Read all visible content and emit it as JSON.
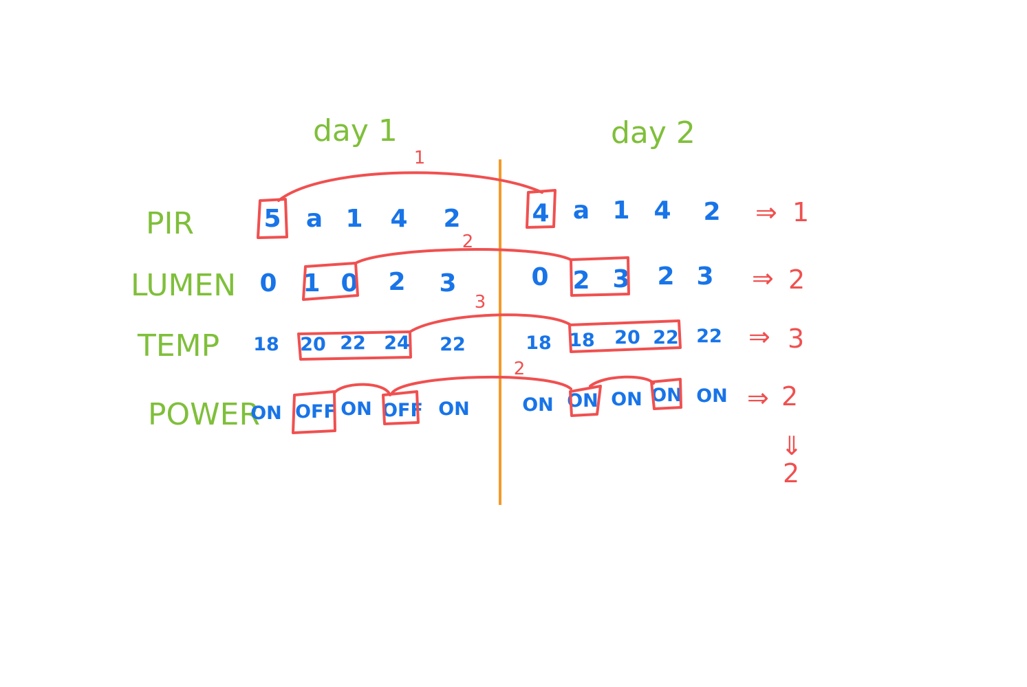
{
  "headers": {
    "day1": "day 1",
    "day2": "day 2"
  },
  "rows": [
    {
      "label": "PIR",
      "day1": [
        "5",
        "a",
        "1",
        "4",
        "2"
      ],
      "day2": [
        "4",
        "a",
        "1",
        "4",
        "2"
      ],
      "result": "1",
      "arc_label": "1"
    },
    {
      "label": "LUMEN",
      "day1": [
        "0",
        "1",
        "0",
        "2",
        "3"
      ],
      "day2": [
        "0",
        "2",
        "3",
        "2",
        "3"
      ],
      "result": "2",
      "arc_label": "2"
    },
    {
      "label": "TEMP",
      "day1": [
        "18",
        "20",
        "22",
        "24",
        "22"
      ],
      "day2": [
        "18",
        "18",
        "20",
        "22",
        "22"
      ],
      "result": "3",
      "arc_label": "3"
    },
    {
      "label": "POWER",
      "day1": [
        "ON",
        "OFF",
        "ON",
        "OFF",
        "ON"
      ],
      "day2": [
        "ON",
        "ON",
        "ON",
        "ON",
        "ON"
      ],
      "result": "2",
      "arc_label": "2"
    }
  ],
  "arrow_symbol": "⇒",
  "down_arrow_symbol": "⇓",
  "final_result": "2",
  "colors": {
    "labels": "#7fbf3a",
    "values": "#1874e8",
    "marks": "#f05050",
    "divider": "#f39a2a"
  }
}
